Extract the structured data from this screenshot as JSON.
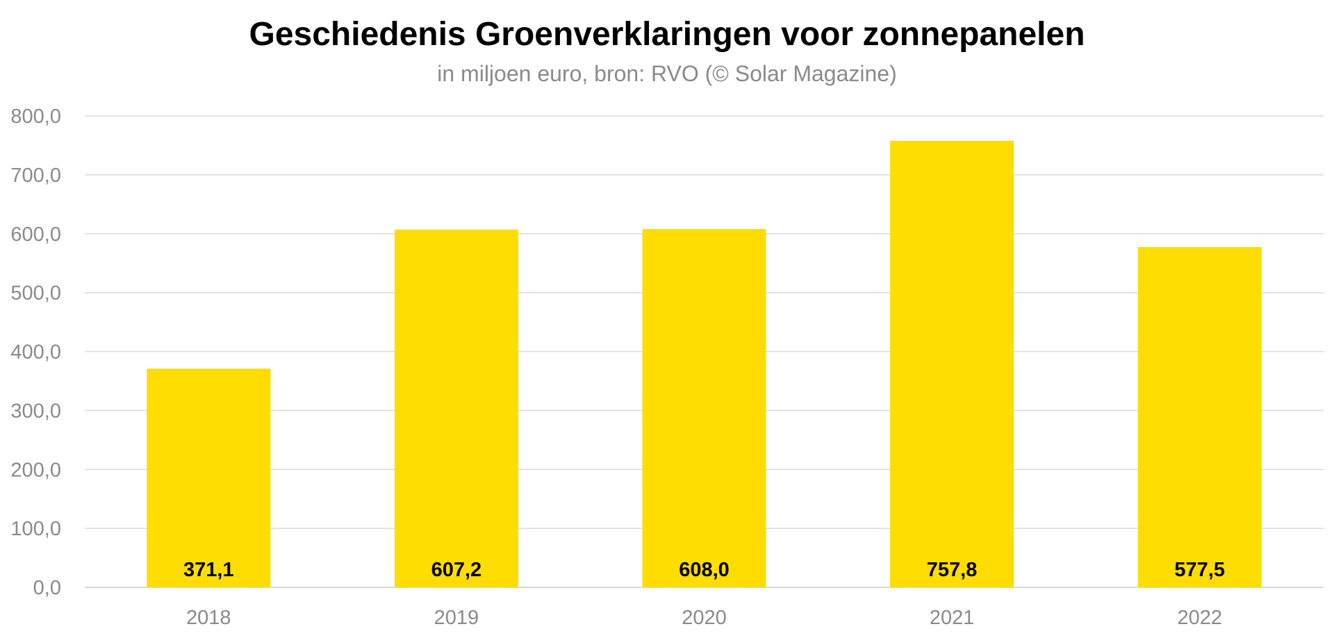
{
  "chart_data": {
    "type": "bar",
    "title": "Geschiedenis Groenverklaringen voor zonnepanelen",
    "subtitle": "in miljoen euro, bron: RVO (© Solar Magazine)",
    "categories": [
      "2018",
      "2019",
      "2020",
      "2021",
      "2022"
    ],
    "values": [
      371.1,
      607.2,
      608.0,
      757.8,
      577.5
    ],
    "data_labels": [
      "371,1",
      "607,2",
      "608,0",
      "757,8",
      "577,5"
    ],
    "y_ticks": [
      0,
      100,
      200,
      300,
      400,
      500,
      600,
      700,
      800
    ],
    "y_tick_labels": [
      "0,0",
      "100,0",
      "200,0",
      "300,0",
      "400,0",
      "500,0",
      "600,0",
      "700,0",
      "800,0"
    ],
    "ylim": [
      0,
      800
    ],
    "xlabel": "",
    "ylabel": "",
    "grid": true,
    "legend": "none",
    "bar_color": "#FFDD00",
    "grid_color": "#d9d9d9",
    "axis_text_color": "#8a8a8a",
    "label_color": "#000000"
  }
}
